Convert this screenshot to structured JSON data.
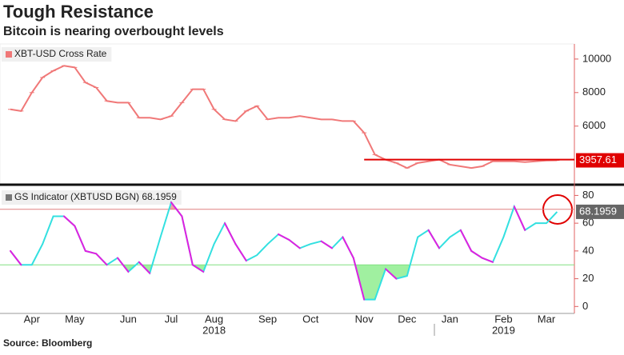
{
  "title": "Tough Resistance",
  "subtitle": "Bitcoin is nearing overbought levels",
  "source": "Source: Bloomberg",
  "chart_data": [
    {
      "type": "line",
      "series": [
        {
          "name": "XBT-USD Cross Rate",
          "color": "#f07878",
          "values": [
            7000,
            6900,
            8000,
            8900,
            9300,
            9600,
            9500,
            8600,
            8300,
            7500,
            7400,
            7400,
            6500,
            6500,
            6400,
            6600,
            7400,
            8200,
            8200,
            7000,
            6400,
            6300,
            6900,
            7200,
            6400,
            6500,
            6500,
            6600,
            6500,
            6400,
            6400,
            6300,
            6300,
            5600,
            4300,
            4000,
            3800,
            3500,
            3800,
            3900,
            4000,
            3700,
            3600,
            3500,
            3600,
            3900,
            3900,
            3900,
            3850,
            3900,
            3950,
            3957.61
          ]
        }
      ],
      "resistance": 4000,
      "resistance_color": "#e00000",
      "ylim": [
        2600,
        10900
      ],
      "yticks": [
        6000,
        8000,
        10000
      ]
    },
    {
      "type": "line",
      "categories": [
        null,
        null,
        "Apr",
        null,
        null,
        null,
        "May",
        null,
        null,
        null,
        null,
        "Jun",
        null,
        null,
        null,
        "Jul",
        null,
        null,
        null,
        "Aug",
        null,
        null,
        null,
        null,
        "Sep",
        null,
        null,
        null,
        "Oct",
        null,
        null,
        null,
        null,
        "Nov",
        null,
        null,
        null,
        "Dec",
        null,
        null,
        null,
        "Jan",
        null,
        null,
        null,
        null,
        "Feb",
        null,
        null,
        null,
        "Mar",
        null
      ],
      "year_labels": [
        "2018",
        "2019"
      ],
      "series": [
        {
          "name": "GS Indicator (XBTUSD BGN) 68.1959",
          "color": "#33e0e0",
          "falling_color": "#e020e0",
          "values": [
            40,
            30,
            30,
            45,
            65,
            65,
            58,
            40,
            38,
            30,
            35,
            25,
            32,
            24,
            50,
            75,
            65,
            30,
            25,
            45,
            60,
            45,
            33,
            37,
            45,
            52,
            48,
            42,
            45,
            47,
            42,
            50,
            35,
            5,
            5,
            27,
            20,
            22,
            50,
            55,
            42,
            50,
            55,
            40,
            35,
            32,
            50,
            72,
            55,
            60,
            60,
            68.1959
          ]
        }
      ],
      "overbought": 70,
      "oversold": 30,
      "ylim": [
        -5,
        86
      ],
      "yticks": [
        0,
        20,
        40,
        60,
        80
      ]
    }
  ]
}
